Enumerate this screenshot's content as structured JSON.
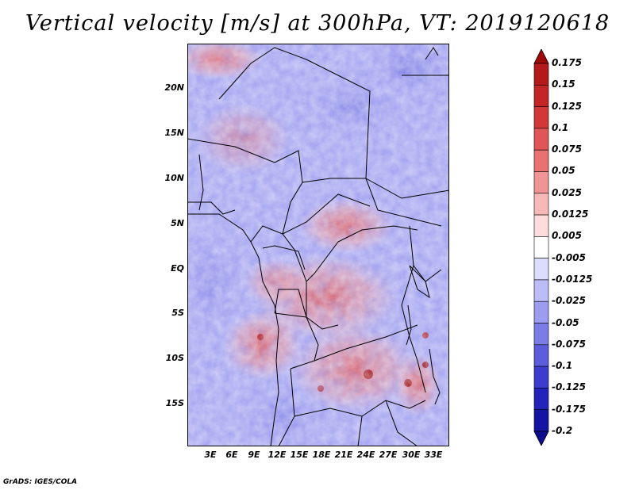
{
  "title": "Vertical velocity [m/s] at 300hPa, VT: 2019120618",
  "map": {
    "variable": "Vertical velocity",
    "units": "m/s",
    "level": "300hPa",
    "valid_time": "2019120618",
    "lat_labels": [
      "20N",
      "15N",
      "10N",
      "5N",
      "EQ",
      "5S",
      "10S",
      "15S"
    ],
    "lon_labels": [
      "3E",
      "6E",
      "9E",
      "12E",
      "15E",
      "18E",
      "21E",
      "24E",
      "27E",
      "30E",
      "33E"
    ]
  },
  "colorbar": {
    "labels": [
      "0.175",
      "0.15",
      "0.125",
      "0.1",
      "0.075",
      "0.05",
      "0.025",
      "0.0125",
      "0.005",
      "-0.005",
      "-0.0125",
      "-0.025",
      "-0.05",
      "-0.075",
      "-0.1",
      "-0.125",
      "-0.175",
      "-0.2"
    ],
    "colors": [
      "#9e0a0a",
      "#b41a1a",
      "#c42626",
      "#d33838",
      "#e05555",
      "#e87272",
      "#f09494",
      "#f7b8b8",
      "#fcdcdc",
      "#ffffff",
      "#dcdcfc",
      "#bcbcf7",
      "#9c9cf0",
      "#7c7ce6",
      "#5c5cdc",
      "#3c3cce",
      "#2424bc",
      "#1414a4",
      "#0c0c8c"
    ]
  },
  "credit": "GrADS: IGES/COLA"
}
